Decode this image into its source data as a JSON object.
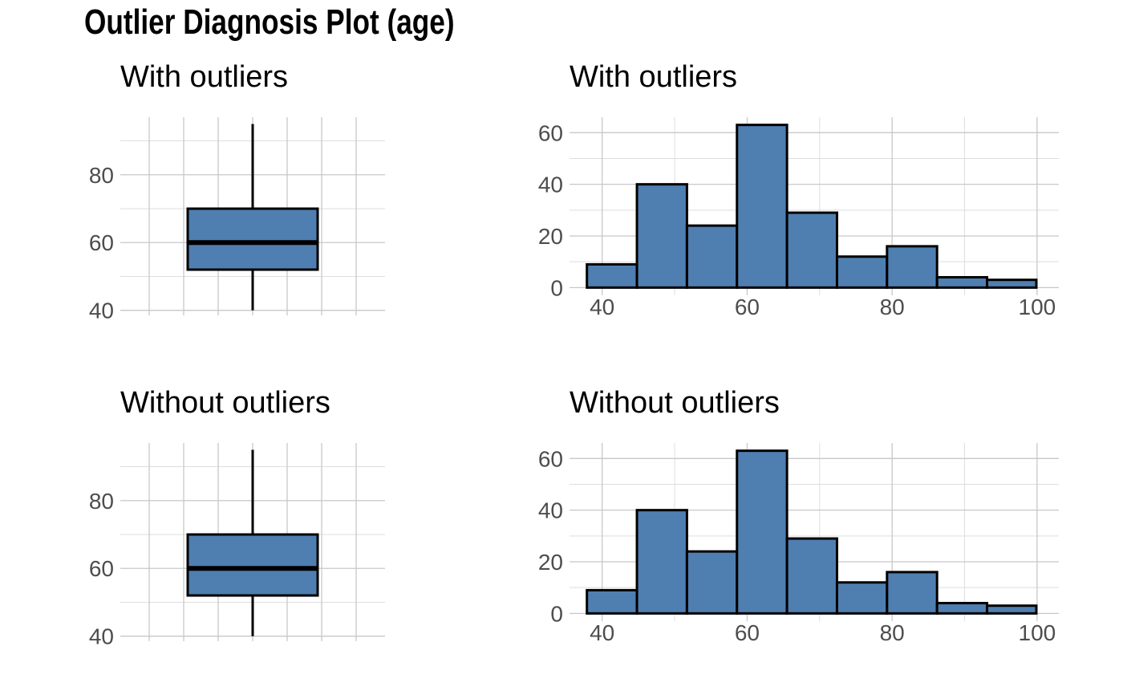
{
  "title": "Outlier Diagnosis Plot (age)",
  "colors": {
    "fill": "#4f7eb1",
    "outline": "#000000",
    "grid": "#c8c8c8",
    "text": "#000000",
    "tick_text": "#4d4d4d"
  },
  "chart_data": [
    {
      "type": "boxplot",
      "title": "With outliers",
      "xlabel": "",
      "ylabel": "",
      "ylim": [
        38.5,
        97
      ],
      "yticks": [
        40,
        60,
        80
      ],
      "box": {
        "min": 40,
        "q1": 52,
        "median": 60,
        "q3": 70,
        "max": 95
      },
      "grid": true
    },
    {
      "type": "bar",
      "title": "With outliers",
      "xlabel": "",
      "ylabel": "",
      "xlim": [
        35.5,
        103
      ],
      "ylim": [
        -3,
        66
      ],
      "xticks": [
        40,
        60,
        80,
        100
      ],
      "yticks": [
        0,
        20,
        40,
        60
      ],
      "bins": [
        {
          "from": 37.9,
          "to": 44.8,
          "count": 9
        },
        {
          "from": 44.8,
          "to": 51.7,
          "count": 40
        },
        {
          "from": 51.7,
          "to": 58.6,
          "count": 24
        },
        {
          "from": 58.6,
          "to": 65.5,
          "count": 63
        },
        {
          "from": 65.5,
          "to": 72.4,
          "count": 29
        },
        {
          "from": 72.4,
          "to": 79.3,
          "count": 12
        },
        {
          "from": 79.3,
          "to": 86.2,
          "count": 16
        },
        {
          "from": 86.2,
          "to": 93.1,
          "count": 4
        },
        {
          "from": 93.1,
          "to": 99.9,
          "count": 3
        }
      ],
      "grid": true
    },
    {
      "type": "boxplot",
      "title": "Without outliers",
      "xlabel": "",
      "ylabel": "",
      "ylim": [
        38.5,
        97
      ],
      "yticks": [
        40,
        60,
        80
      ],
      "box": {
        "min": 40,
        "q1": 52,
        "median": 60,
        "q3": 70,
        "max": 95
      },
      "grid": true
    },
    {
      "type": "bar",
      "title": "Without outliers",
      "xlabel": "",
      "ylabel": "",
      "xlim": [
        35.5,
        103
      ],
      "ylim": [
        -3,
        66
      ],
      "xticks": [
        40,
        60,
        80,
        100
      ],
      "yticks": [
        0,
        20,
        40,
        60
      ],
      "bins": [
        {
          "from": 37.9,
          "to": 44.8,
          "count": 9
        },
        {
          "from": 44.8,
          "to": 51.7,
          "count": 40
        },
        {
          "from": 51.7,
          "to": 58.6,
          "count": 24
        },
        {
          "from": 58.6,
          "to": 65.5,
          "count": 63
        },
        {
          "from": 65.5,
          "to": 72.4,
          "count": 29
        },
        {
          "from": 72.4,
          "to": 79.3,
          "count": 12
        },
        {
          "from": 79.3,
          "to": 86.2,
          "count": 16
        },
        {
          "from": 86.2,
          "to": 93.1,
          "count": 4
        },
        {
          "from": 93.1,
          "to": 99.9,
          "count": 3
        }
      ],
      "grid": true
    }
  ]
}
